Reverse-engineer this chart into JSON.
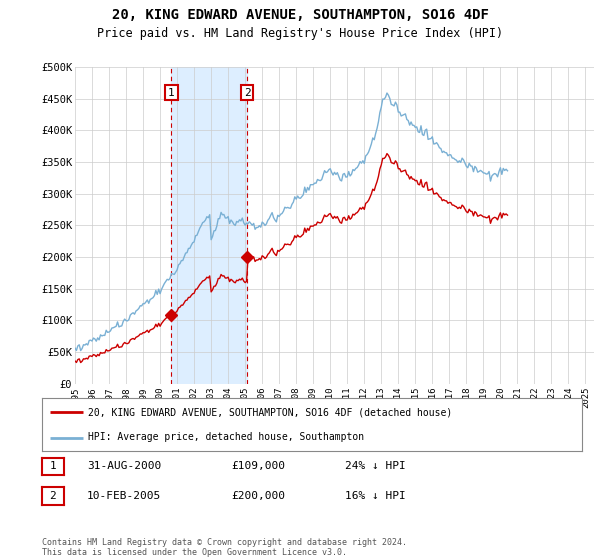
{
  "title": "20, KING EDWARD AVENUE, SOUTHAMPTON, SO16 4DF",
  "subtitle": "Price paid vs. HM Land Registry's House Price Index (HPI)",
  "ylabel_ticks": [
    "£0",
    "£50K",
    "£100K",
    "£150K",
    "£200K",
    "£250K",
    "£300K",
    "£350K",
    "£400K",
    "£450K",
    "£500K"
  ],
  "ylim": [
    0,
    500000
  ],
  "xlim_start": 1995.0,
  "xlim_end": 2025.5,
  "purchase1_date": 2000.667,
  "purchase1_price": 109000,
  "purchase2_date": 2005.11,
  "purchase2_price": 200000,
  "legend_line1": "20, KING EDWARD AVENUE, SOUTHAMPTON, SO16 4DF (detached house)",
  "legend_line2": "HPI: Average price, detached house, Southampton",
  "table_row1": [
    "1",
    "31-AUG-2000",
    "£109,000",
    "24% ↓ HPI"
  ],
  "table_row2": [
    "2",
    "10-FEB-2005",
    "£200,000",
    "16% ↓ HPI"
  ],
  "footnote": "Contains HM Land Registry data © Crown copyright and database right 2024.\nThis data is licensed under the Open Government Licence v3.0.",
  "hpi_color": "#7ab0d4",
  "price_color": "#cc0000",
  "shade_color": "#ddeeff",
  "grid_color": "#cccccc",
  "background_color": "#ffffff",
  "hpi_monthly": [
    55000,
    56000,
    57000,
    58000,
    59000,
    60000,
    61000,
    62000,
    63000,
    64000,
    65000,
    66000,
    67000,
    68000,
    69000,
    70000,
    71000,
    72500,
    74000,
    75500,
    77000,
    78500,
    80000,
    81500,
    83000,
    84500,
    86000,
    87000,
    88000,
    89000,
    90000,
    91000,
    92500,
    94000,
    96000,
    98000,
    100000,
    102000,
    104000,
    106000,
    108000,
    110000,
    112000,
    114000,
    116000,
    118000,
    120000,
    122000,
    124000,
    126000,
    128000,
    130000,
    132000,
    134000,
    136000,
    138000,
    140000,
    142000,
    144000,
    146000,
    148000,
    150000,
    153000,
    156000,
    159000,
    162000,
    165000,
    168000,
    171000,
    174000,
    177000,
    180000,
    183000,
    186000,
    189000,
    192000,
    196000,
    200000,
    204000,
    208000,
    212000,
    216000,
    220000,
    224000,
    228000,
    232000,
    236000,
    240000,
    244000,
    248000,
    252000,
    256000,
    260000,
    264000,
    268000,
    272000,
    232000,
    236000,
    240000,
    245000,
    250000,
    256000,
    262000,
    268000,
    270000,
    268000,
    265000,
    263000,
    261000,
    259000,
    257000,
    255000,
    254000,
    255000,
    256000,
    257000,
    258000,
    257000,
    256000,
    255000,
    254000,
    253000,
    252000,
    251000,
    250000,
    249000,
    248000,
    248000,
    249000,
    250000,
    251000,
    252000,
    253000,
    254000,
    255000,
    256000,
    257000,
    258000,
    259000,
    260000,
    261000,
    262000,
    263000,
    265000,
    267000,
    269000,
    271000,
    273000,
    275000,
    277000,
    279000,
    281000,
    283000,
    285000,
    287000,
    289000,
    291000,
    293000,
    295000,
    297000,
    299000,
    301000,
    303000,
    305000,
    307000,
    309000,
    311000,
    313000,
    315000,
    317000,
    319000,
    321000,
    323000,
    325000,
    327000,
    329000,
    331000,
    333000,
    335000,
    337000,
    335000,
    333000,
    331000,
    330000,
    329000,
    328000,
    327000,
    326000,
    325000,
    325000,
    326000,
    327000,
    328000,
    330000,
    332000,
    334000,
    336000,
    338000,
    340000,
    342000,
    344000,
    346000,
    348000,
    350000,
    355000,
    360000,
    365000,
    370000,
    375000,
    380000,
    385000,
    390000,
    395000,
    405000,
    415000,
    425000,
    435000,
    445000,
    450000,
    455000,
    460000,
    455000,
    450000,
    445000,
    440000,
    438000,
    436000,
    434000,
    432000,
    430000,
    428000,
    426000,
    424000,
    422000,
    420000,
    418000,
    416000,
    414000,
    412000,
    410000,
    408000,
    406000,
    404000,
    402000,
    400000,
    398000,
    396000,
    394000,
    392000,
    390000,
    388000,
    386000,
    384000,
    382000,
    380000,
    378000,
    376000,
    374000,
    372000,
    370000,
    368000,
    366000,
    364000,
    362000,
    360000,
    358000,
    356000,
    355000,
    354000,
    353000,
    352000,
    351000,
    350000,
    349000,
    348000,
    347000,
    346000,
    345000,
    344000,
    343000,
    342000,
    341000,
    340000,
    339000,
    338000,
    337000,
    336000,
    335000,
    334000,
    333000,
    332000,
    331000,
    330000,
    329000,
    329000,
    330000,
    331000,
    332000,
    333000,
    334000,
    335000,
    336000,
    337000,
    338000,
    339000,
    340000
  ]
}
